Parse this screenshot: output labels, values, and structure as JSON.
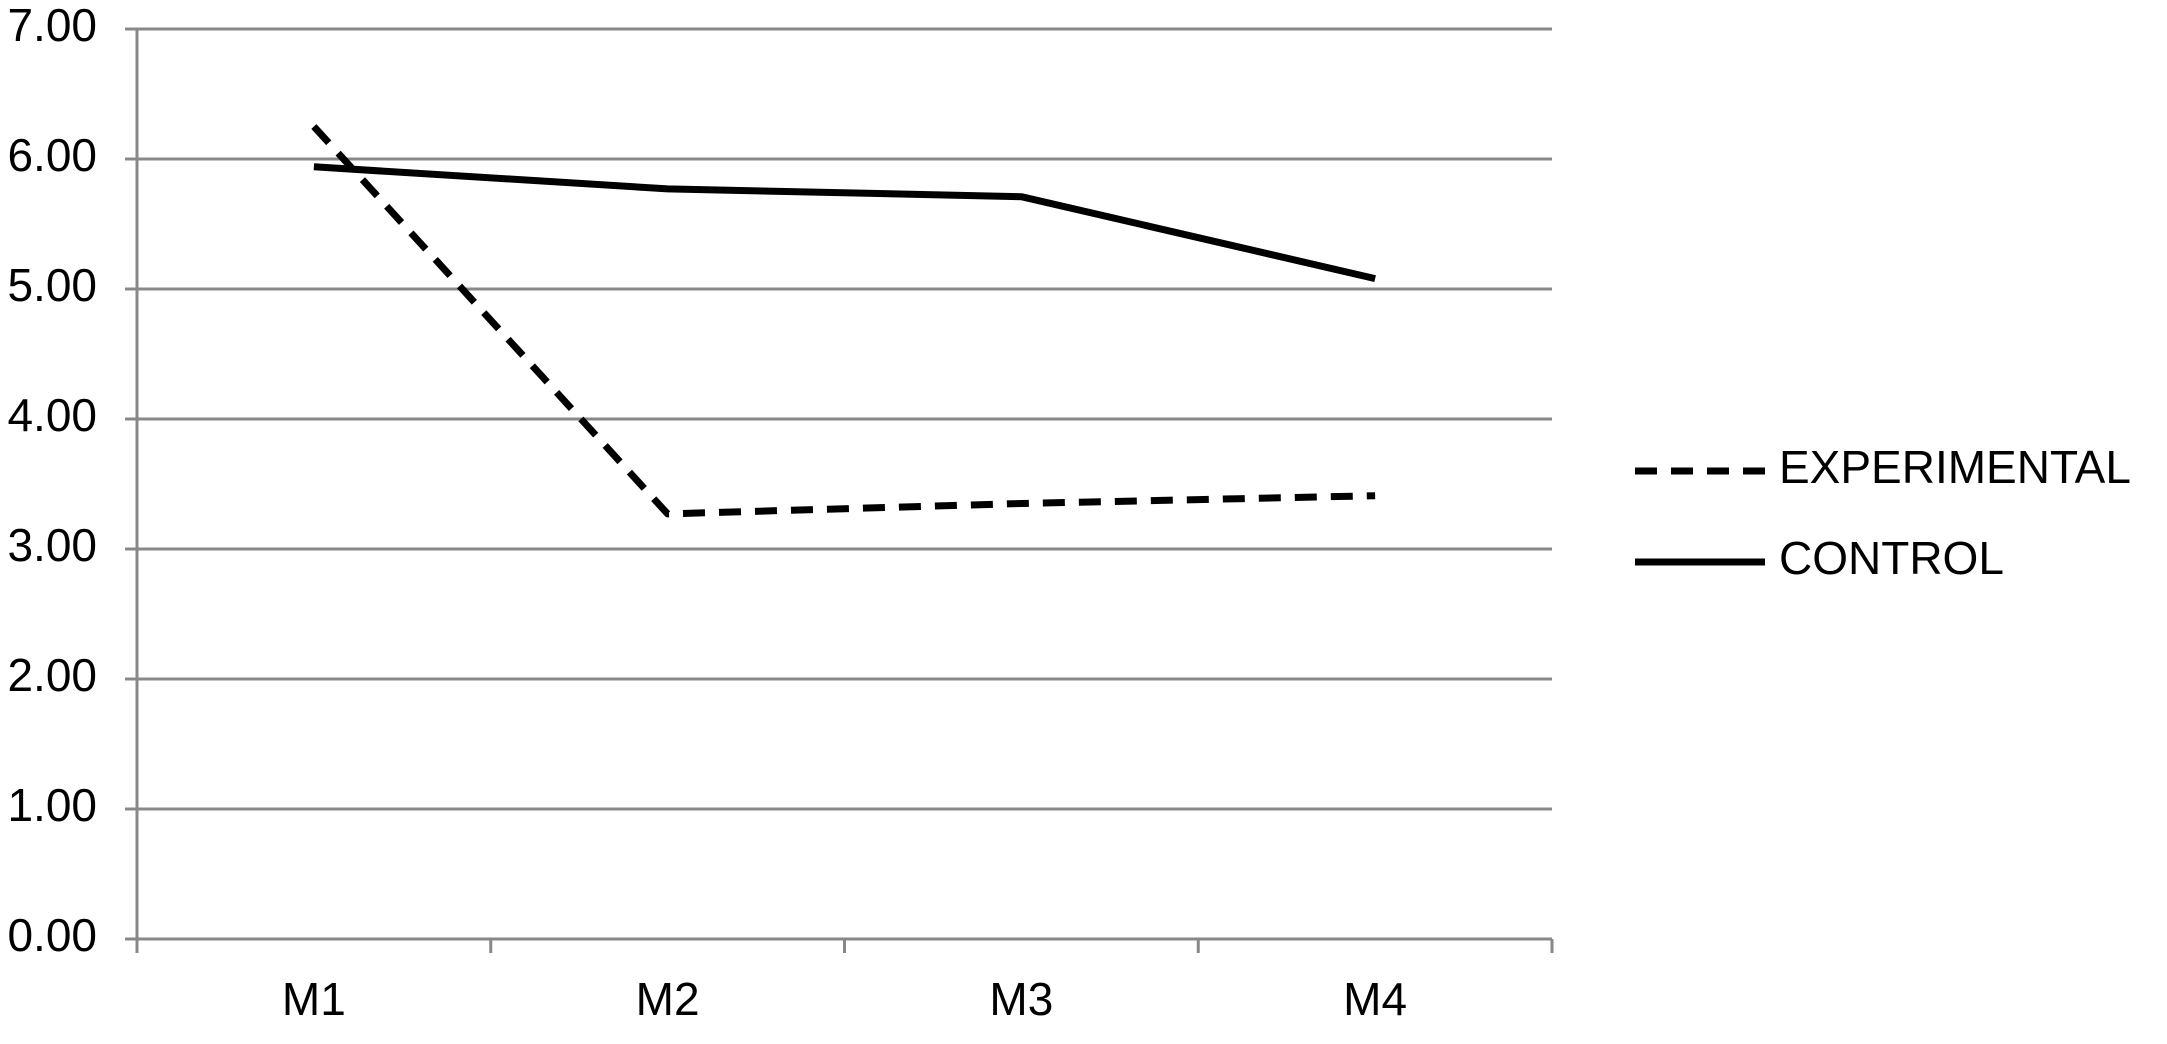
{
  "chart_data": {
    "type": "line",
    "categories": [
      "M1",
      "M2",
      "M3",
      "M4"
    ],
    "series": [
      {
        "name": "EXPERIMENTAL",
        "color": "#000000",
        "dash": true,
        "values": [
          6.25,
          3.27,
          3.35,
          3.41
        ]
      },
      {
        "name": "CONTROL",
        "color": "#000000",
        "dash": false,
        "values": [
          5.94,
          5.77,
          5.71,
          5.08
        ]
      }
    ],
    "ylim": [
      0,
      7
    ],
    "yticks": [
      {
        "value": 0,
        "label": "0.00"
      },
      {
        "value": 1,
        "label": "1.00"
      },
      {
        "value": 2,
        "label": "2.00"
      },
      {
        "value": 3,
        "label": "3.00"
      },
      {
        "value": 4,
        "label": "4.00"
      },
      {
        "value": 5,
        "label": "5.00"
      },
      {
        "value": 6,
        "label": "6.00"
      },
      {
        "value": 7,
        "label": "7.00"
      }
    ],
    "grid": true,
    "legend": "right"
  }
}
